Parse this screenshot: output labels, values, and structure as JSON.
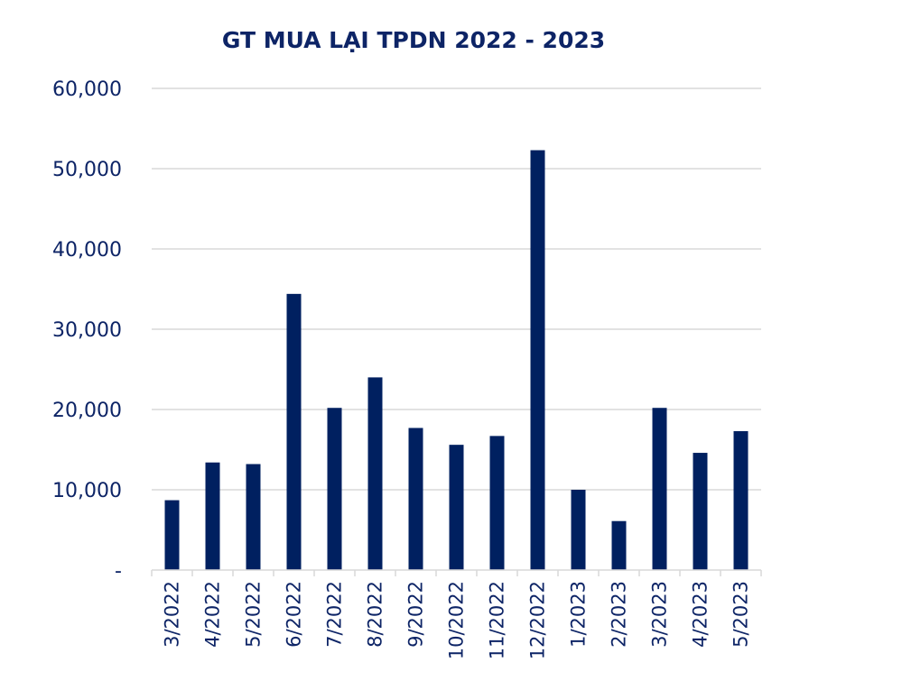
{
  "chart_data": {
    "type": "bar",
    "title": "GT MUA LẠI TPDN 2022 - 2023",
    "xlabel": "",
    "ylabel": "",
    "categories": [
      "3/2022",
      "4/2022",
      "5/2022",
      "6/2022",
      "7/2022",
      "8/2022",
      "9/2022",
      "10/2022",
      "11/2022",
      "12/2022",
      "1/2023",
      "2/2023",
      "3/2023",
      "4/2023",
      "5/2023"
    ],
    "values": [
      8700,
      13400,
      13200,
      34400,
      20200,
      24000,
      17700,
      15600,
      16700,
      52300,
      10000,
      6100,
      20200,
      14600,
      17300
    ],
    "ylim": [
      0,
      60000
    ],
    "yticks": [
      0,
      10000,
      20000,
      30000,
      40000,
      50000,
      60000
    ],
    "ytick_labels": [
      "-",
      "10,000",
      "20,000",
      "30,000",
      "40,000",
      "50,000",
      "60,000"
    ],
    "grid": true,
    "legend": "none",
    "bar_color": "#002060"
  }
}
